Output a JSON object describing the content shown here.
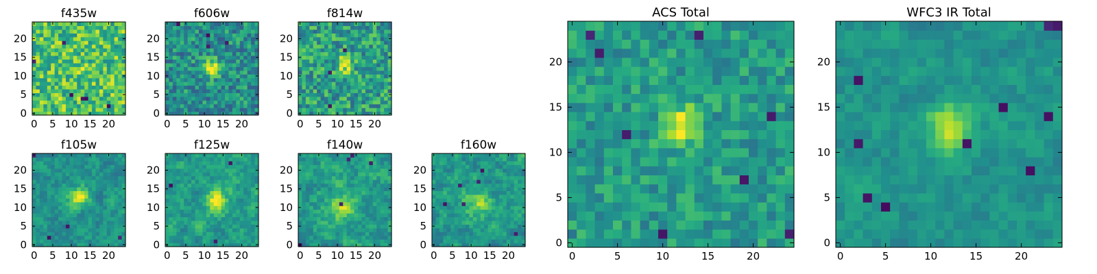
{
  "figure": {
    "type": "heatmap-grid",
    "colormap": "viridis"
  },
  "chart_data": [
    {
      "type": "heatmap",
      "title": "f435w",
      "grid": [
        25,
        25
      ],
      "xticks": [
        "0",
        "5",
        "10",
        "15",
        "20"
      ],
      "yticks": [
        "0",
        "5",
        "10",
        "15",
        "20"
      ],
      "xlim": [
        -0.5,
        24.5
      ],
      "ylim": [
        -0.5,
        24.5
      ],
      "source": {
        "x": 12,
        "y": 13,
        "amp": 0.05,
        "sigma": 2.0
      },
      "base": 0.72,
      "noise": 0.48,
      "smooth": 0,
      "holes": 6,
      "seed": 11
    },
    {
      "type": "heatmap",
      "title": "f606w",
      "grid": [
        25,
        25
      ],
      "xticks": [
        "0",
        "5",
        "10",
        "15",
        "20"
      ],
      "yticks": [
        "0",
        "5",
        "10",
        "15",
        "20"
      ],
      "xlim": [
        -0.5,
        24.5
      ],
      "ylim": [
        -0.5,
        24.5
      ],
      "source": {
        "x": 12,
        "y": 12,
        "amp": 0.55,
        "sigma": 1.6
      },
      "base": 0.5,
      "noise": 0.42,
      "smooth": 0,
      "holes": 4,
      "seed": 22
    },
    {
      "type": "heatmap",
      "title": "f814w",
      "grid": [
        25,
        25
      ],
      "xticks": [
        "0",
        "5",
        "10",
        "15",
        "20"
      ],
      "yticks": [
        "0",
        "5",
        "10",
        "15",
        "20"
      ],
      "xlim": [
        -0.5,
        24.5
      ],
      "ylim": [
        -0.5,
        24.5
      ],
      "source": {
        "x": 12,
        "y": 13,
        "amp": 0.4,
        "sigma": 1.6
      },
      "base": 0.56,
      "noise": 0.46,
      "smooth": 0,
      "holes": 3,
      "seed": 33
    },
    {
      "type": "heatmap",
      "title": "f105w",
      "grid": [
        25,
        25
      ],
      "xticks": [
        "0",
        "5",
        "10",
        "15",
        "20"
      ],
      "yticks": [
        "0",
        "5",
        "10",
        "15",
        "20"
      ],
      "xlim": [
        -0.5,
        24.5
      ],
      "ylim": [
        -0.5,
        24.5
      ],
      "source": {
        "x": 12,
        "y": 13,
        "amp": 0.5,
        "sigma": 1.7
      },
      "base": 0.52,
      "noise": 0.4,
      "smooth": 1,
      "holes": 4,
      "seed": 44
    },
    {
      "type": "heatmap",
      "title": "f125w",
      "grid": [
        25,
        25
      ],
      "xticks": [
        "0",
        "5",
        "10",
        "15",
        "20"
      ],
      "yticks": [
        "0",
        "5",
        "10",
        "15",
        "20"
      ],
      "xlim": [
        -0.5,
        24.5
      ],
      "ylim": [
        -0.5,
        24.5
      ],
      "source": {
        "x": 13,
        "y": 12,
        "amp": 0.35,
        "sigma": 2.2
      },
      "base": 0.56,
      "noise": 0.44,
      "smooth": 1,
      "holes": 3,
      "seed": 55
    },
    {
      "type": "heatmap",
      "title": "f140w",
      "grid": [
        25,
        25
      ],
      "xticks": [
        "0",
        "5",
        "10",
        "15",
        "20"
      ],
      "yticks": [
        "0",
        "5",
        "10",
        "15",
        "20"
      ],
      "xlim": [
        -0.5,
        24.5
      ],
      "ylim": [
        -0.5,
        24.5
      ],
      "source": {
        "x": 11,
        "y": 10,
        "amp": 0.3,
        "sigma": 2.5
      },
      "base": 0.56,
      "noise": 0.46,
      "smooth": 1,
      "holes": 5,
      "seed": 66
    },
    {
      "type": "heatmap",
      "title": "f160w",
      "grid": [
        25,
        25
      ],
      "xticks": [
        "0",
        "5",
        "10",
        "15",
        "20"
      ],
      "yticks": [
        "0",
        "5",
        "10",
        "15",
        "20"
      ],
      "xlim": [
        -0.5,
        24.5
      ],
      "ylim": [
        -0.5,
        24.5
      ],
      "source": {
        "x": 12,
        "y": 11,
        "amp": 0.3,
        "sigma": 2.4
      },
      "base": 0.54,
      "noise": 0.46,
      "smooth": 1,
      "holes": 6,
      "seed": 77
    },
    {
      "type": "heatmap",
      "title": "ACS Total",
      "grid": [
        25,
        25
      ],
      "xticks": [
        "0",
        "5",
        "10",
        "15",
        "20"
      ],
      "yticks": [
        "0",
        "5",
        "10",
        "15",
        "20"
      ],
      "xlim": [
        -0.5,
        24.5
      ],
      "ylim": [
        -0.5,
        24.5
      ],
      "source": {
        "x": 12,
        "y": 13,
        "amp": 0.45,
        "sigma": 1.5
      },
      "base": 0.55,
      "noise": 0.3,
      "smooth": 0,
      "holes": 8,
      "seed": 88
    },
    {
      "type": "heatmap",
      "title": "WFC3 IR Total",
      "grid": [
        25,
        25
      ],
      "xticks": [
        "0",
        "5",
        "10",
        "15",
        "20"
      ],
      "yticks": [
        "0",
        "5",
        "10",
        "15",
        "20"
      ],
      "xlim": [
        -0.5,
        24.5
      ],
      "ylim": [
        -0.5,
        24.5
      ],
      "source": {
        "x": 12,
        "y": 13,
        "amp": 0.4,
        "sigma": 1.8
      },
      "base": 0.52,
      "noise": 0.3,
      "smooth": 1,
      "holes": 10,
      "seed": 99
    }
  ]
}
